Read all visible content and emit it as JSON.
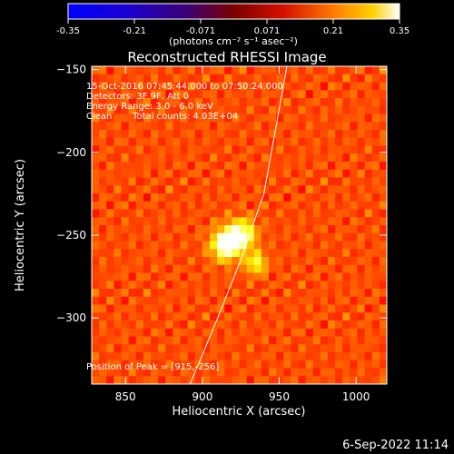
{
  "colorbar": {
    "ticks": [
      "-0.35",
      "-0.21",
      "-0.071",
      "0.071",
      "0.21",
      "0.35"
    ],
    "unit_label": "(photons cm⁻² s⁻¹ asec⁻²)"
  },
  "chart_data": {
    "type": "heatmap",
    "title": "Reconstructed RHESSI Image",
    "xlabel": "Heliocentric X (arcsec)",
    "ylabel": "Heliocentric Y (arcsec)",
    "xlim": [
      828,
      1020
    ],
    "ylim": [
      -340,
      -148
    ],
    "x_ticks": [
      850,
      900,
      950,
      1000
    ],
    "y_ticks": [
      -150,
      -200,
      -250,
      -300
    ],
    "x_tick_labels": [
      "850",
      "900",
      "950",
      "1000"
    ],
    "y_tick_labels": [
      "−150",
      "−200",
      "−250",
      "−300"
    ],
    "color_range": [
      -0.35,
      0.35
    ],
    "colormap": "hot",
    "peak": [
      915,
      -256
    ],
    "sources": [
      {
        "x": 915,
        "y": -256,
        "intensity": 0.35
      },
      {
        "x": 925,
        "y": -250,
        "intensity": 0.31
      },
      {
        "x": 935,
        "y": -267,
        "intensity": 0.22
      }
    ],
    "annotations": {
      "time": "15-Oct-2016 07:45:44.000 to 07:50:24.000",
      "detectors": "Detectors: 3F 9F, Att 0",
      "energy": "Energy Range: 3.0 - 6.0 keV",
      "clean_label": "Clean",
      "total_counts": "Total counts: 4.03E+04",
      "peak_text": "Position of Peak = [915,-256]"
    },
    "limb_curve": [
      [
        892,
        -340
      ],
      [
        910,
        -300
      ],
      [
        925,
        -265
      ],
      [
        940,
        -225
      ],
      [
        955,
        -148
      ]
    ]
  },
  "footer_date": "6-Sep-2022 11:14"
}
